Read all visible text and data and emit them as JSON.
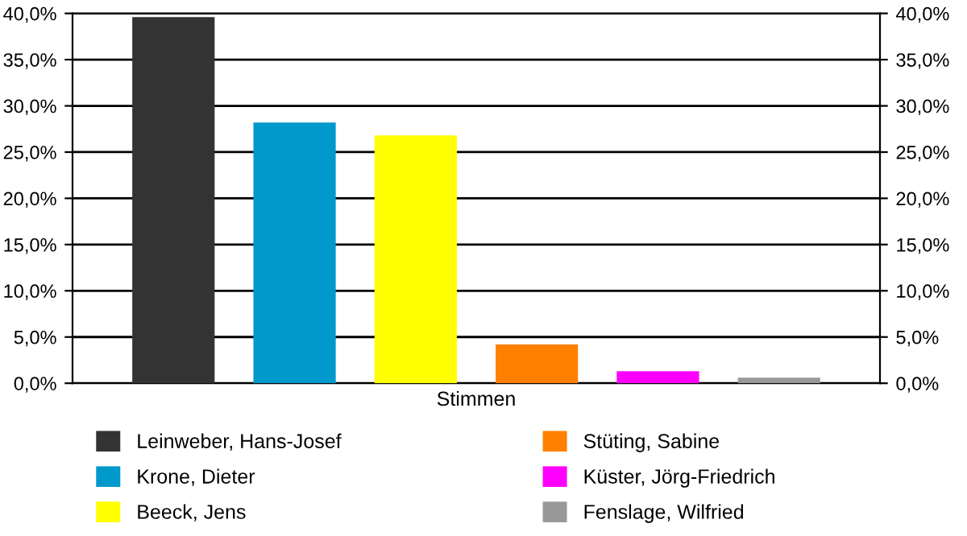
{
  "chart_data": {
    "type": "bar",
    "categories": [
      "Stimmen"
    ],
    "series": [
      {
        "name": "Leinweber, Hans-Josef",
        "color": "#333333",
        "values": [
          39.6
        ]
      },
      {
        "name": "Krone, Dieter",
        "color": "#0099cc",
        "values": [
          28.2
        ]
      },
      {
        "name": "Beeck, Jens",
        "color": "#ffff00",
        "values": [
          26.8
        ]
      },
      {
        "name": "Stüting, Sabine",
        "color": "#ff8000",
        "values": [
          4.2
        ]
      },
      {
        "name": "Küster, Jörg-Friedrich",
        "color": "#ff00ff",
        "values": [
          1.3
        ]
      },
      {
        "name": "Fenslage, Wilfried",
        "color": "#999999",
        "values": [
          0.6
        ]
      }
    ],
    "ylim": [
      0,
      40
    ],
    "yticks": [
      {
        "value": 0,
        "label": "0,0%"
      },
      {
        "value": 5,
        "label": "5,0%"
      },
      {
        "value": 10,
        "label": "10,0%"
      },
      {
        "value": 15,
        "label": "15,0%"
      },
      {
        "value": 20,
        "label": "20,0%"
      },
      {
        "value": 25,
        "label": "25,0%"
      },
      {
        "value": 30,
        "label": "30,0%"
      },
      {
        "value": 35,
        "label": "35,0%"
      },
      {
        "value": 40,
        "label": "40,0%"
      }
    ],
    "grid": "y",
    "legend": "bottom"
  }
}
